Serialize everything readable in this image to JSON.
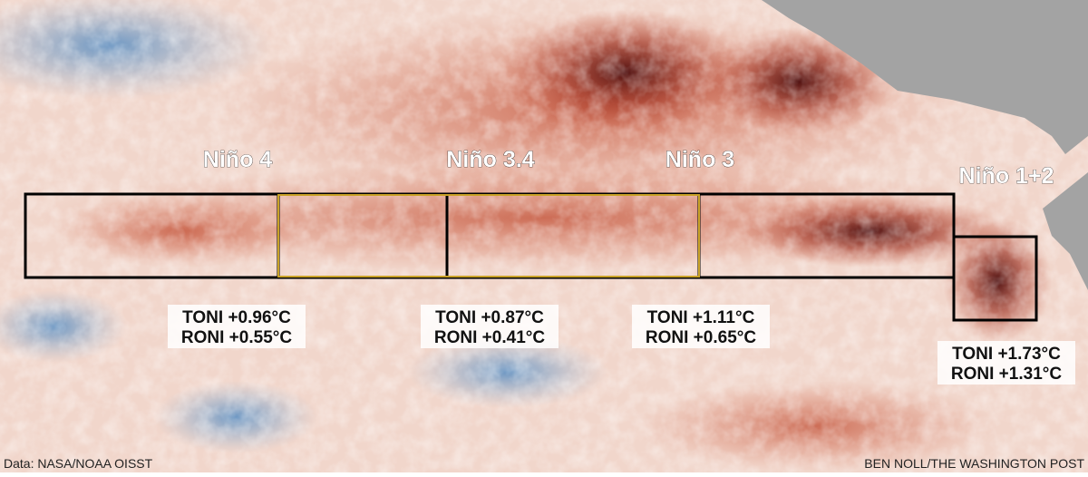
{
  "regions": [
    {
      "name": "Niño 4",
      "toni": "TONI +0.96°C",
      "roni": "RONI +0.55°C"
    },
    {
      "name": "Niño 3.4",
      "toni": "TONI +0.87°C",
      "roni": "RONI +0.41°C"
    },
    {
      "name": "Niño 3",
      "toni": "TONI +1.11°C",
      "roni": "RONI +0.65°C"
    },
    {
      "name": "Niño 1+2",
      "toni": "TONI +1.73°C",
      "roni": "RONI +1.31°C"
    }
  ],
  "credits": {
    "source": "Data: NASA/NOAA OISST",
    "byline": "BEN NOLL/THE WASHINGTON POST"
  }
}
